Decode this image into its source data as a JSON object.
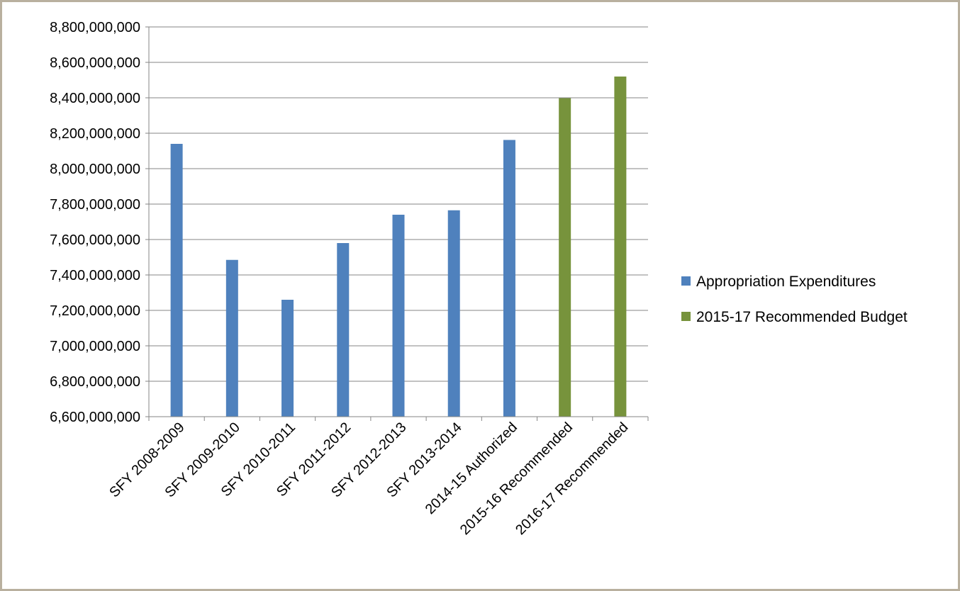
{
  "chart_data": {
    "type": "bar",
    "categories": [
      "SFY 2008-2009",
      "SFY 2009-2010",
      "SFY 2010-2011",
      "SFY 2011-2012",
      "SFY 2012-2013",
      "SFY 2013-2014",
      "2014-15 Authorized",
      "2015-16 Recommended",
      "2016-17 Recommended"
    ],
    "series": [
      {
        "name": "Appropriation Expenditures",
        "color": "#4f81bd",
        "values": [
          8140000000,
          7485000000,
          7260000000,
          7580000000,
          7740000000,
          7765000000,
          8162000000,
          null,
          null
        ]
      },
      {
        "name": "2015-17 Recommended Budget",
        "color": "#77933c",
        "values": [
          null,
          null,
          null,
          null,
          null,
          null,
          null,
          8398000000,
          8520000000
        ]
      }
    ],
    "ylim": [
      6600000000,
      8800000000
    ],
    "y_ticks": [
      "6,600,000,000",
      "6,800,000,000",
      "7,000,000,000",
      "7,200,000,000",
      "7,400,000,000",
      "7,600,000,000",
      "7,800,000,000",
      "8,000,000,000",
      "8,200,000,000",
      "8,400,000,000",
      "8,600,000,000",
      "8,800,000,000"
    ],
    "y_tick_values": [
      6600000000,
      6800000000,
      7000000000,
      7200000000,
      7400000000,
      7600000000,
      7800000000,
      8000000000,
      8200000000,
      8400000000,
      8600000000,
      8800000000
    ],
    "grid": true,
    "legend_position": "right",
    "title": "",
    "xlabel": "",
    "ylabel": ""
  }
}
